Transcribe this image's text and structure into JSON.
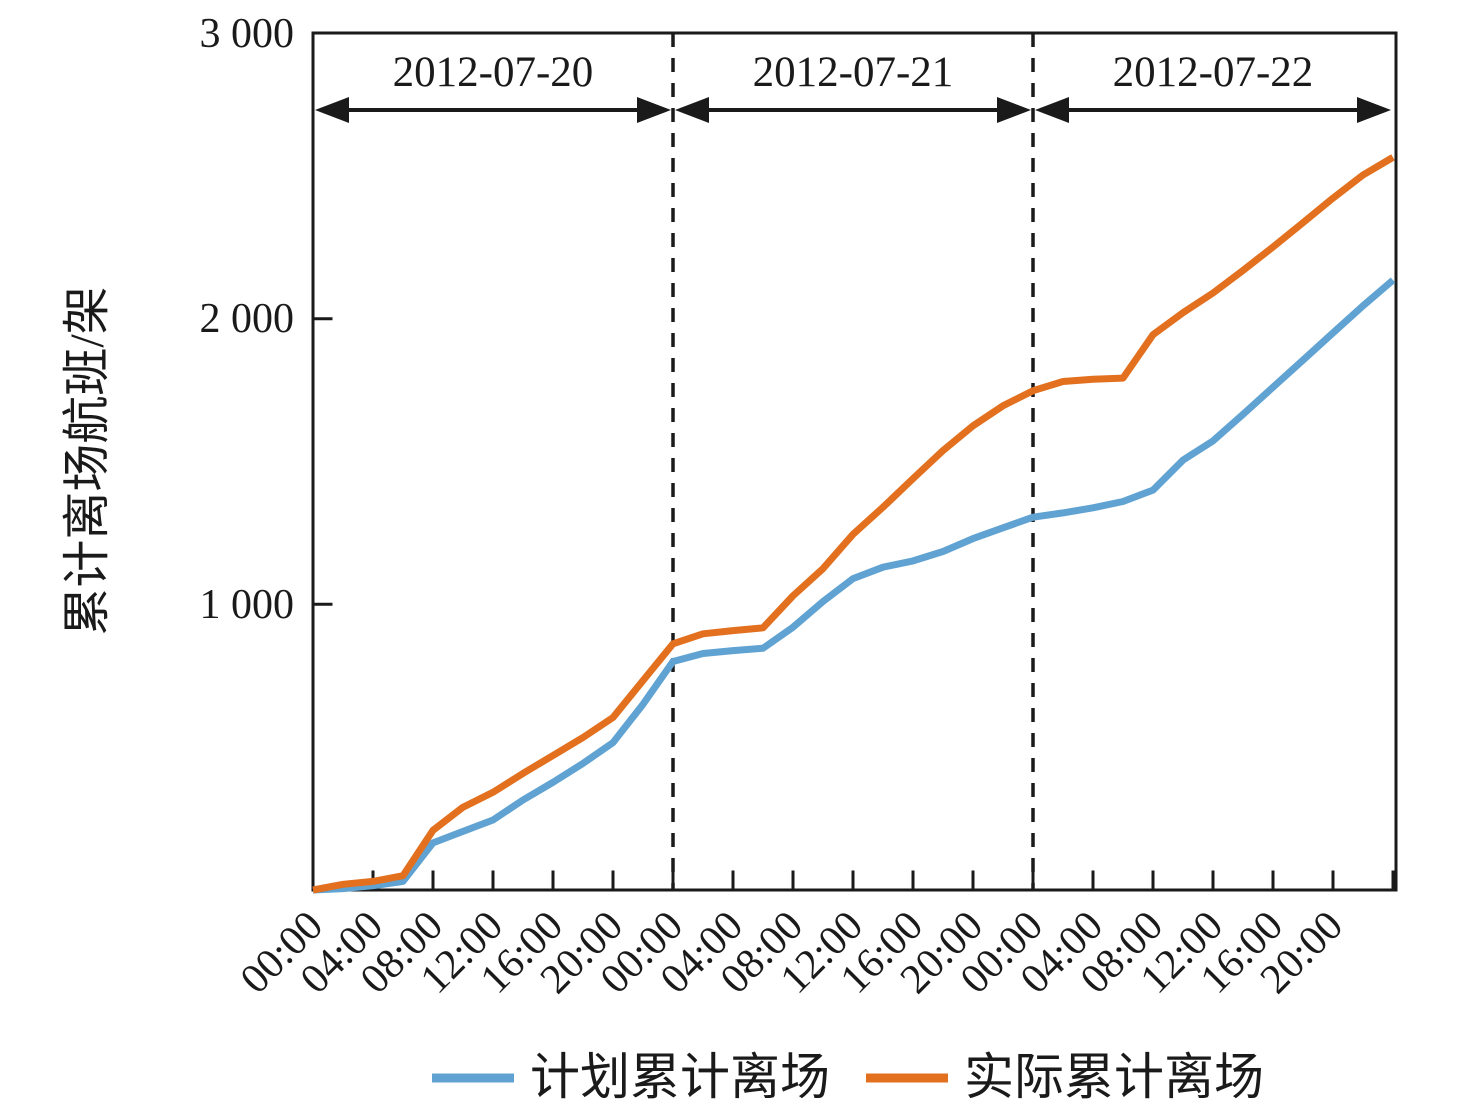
{
  "chart_data": {
    "type": "line",
    "ylabel": "累计离场航班/架",
    "ylim": [
      0,
      3000
    ],
    "grid": false,
    "legend_position": "bottom",
    "date_bands": [
      "2012-07-20",
      "2012-07-21",
      "2012-07-22"
    ],
    "y_axis": {
      "tick_labels": [
        "3 000",
        "2 000",
        "1 000"
      ],
      "tick_values": [
        3000,
        2000,
        1000
      ]
    },
    "x_axis": {
      "unit": "time of day over three consecutive days",
      "tick_interval_hours": 4,
      "tick_labels": [
        "00:00",
        "04:00",
        "08:00",
        "12:00",
        "16:00",
        "20:00",
        "00:00",
        "04:00",
        "08:00",
        "12:00",
        "16:00",
        "20:00",
        "00:00",
        "04:00",
        "08:00",
        "12:00",
        "16:00",
        "20:00"
      ]
    },
    "sample_interval_hours": 2,
    "x_hours": [
      0,
      2,
      4,
      6,
      8,
      10,
      12,
      14,
      16,
      18,
      20,
      22,
      24,
      26,
      28,
      30,
      32,
      34,
      36,
      38,
      40,
      42,
      44,
      46,
      48,
      50,
      52,
      54,
      56,
      58,
      60,
      62,
      64,
      66,
      68,
      70,
      72
    ],
    "series": [
      {
        "name": "计划累计离场",
        "color": "#60A3D2",
        "values": [
          0,
          5,
          15,
          30,
          165,
          205,
          245,
          315,
          377,
          443,
          516,
          650,
          800,
          828,
          838,
          846,
          920,
          1010,
          1090,
          1130,
          1152,
          1185,
          1230,
          1268,
          1305,
          1320,
          1338,
          1360,
          1400,
          1505,
          1572,
          1665,
          1760,
          1855,
          1950,
          2045,
          2135
        ]
      },
      {
        "name": "实际累计离场",
        "color": "#E2701F",
        "values": [
          0,
          20,
          30,
          50,
          209,
          290,
          342,
          408,
          471,
          534,
          604,
          733,
          862,
          897,
          908,
          918,
          1030,
          1125,
          1245,
          1340,
          1440,
          1538,
          1625,
          1695,
          1748,
          1780,
          1788,
          1792,
          1944,
          2021,
          2090,
          2169,
          2251,
          2336,
          2422,
          2503,
          2565
        ]
      }
    ]
  }
}
